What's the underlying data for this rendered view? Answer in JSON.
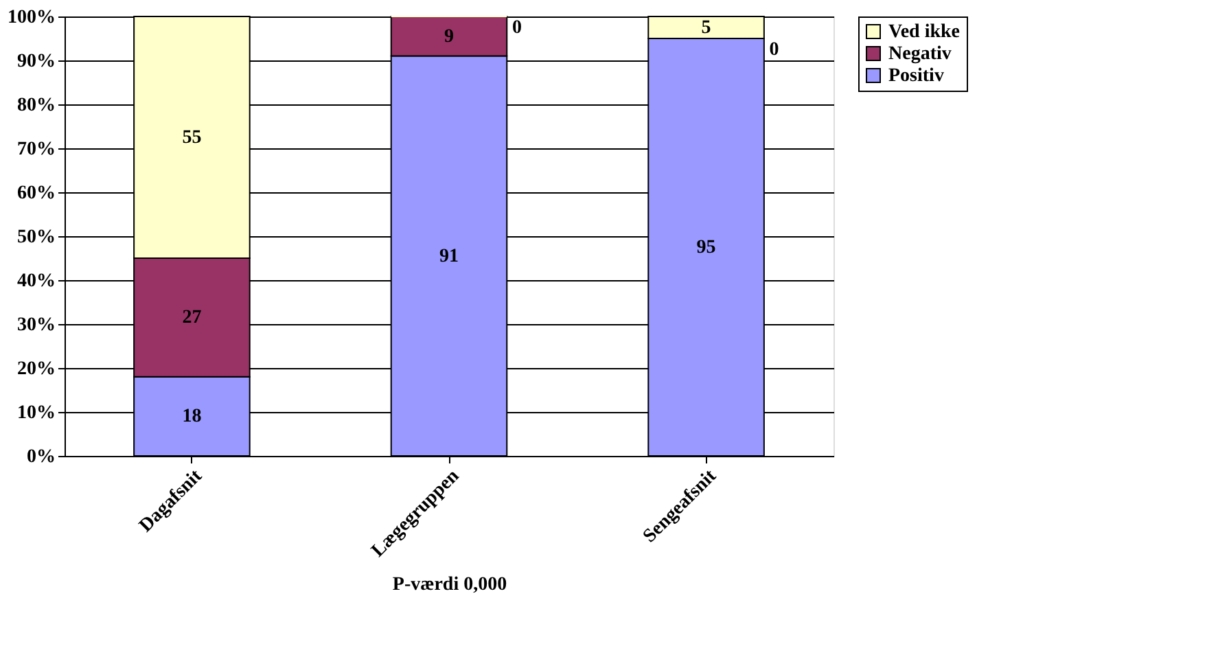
{
  "chart_data": {
    "type": "bar",
    "stacked": true,
    "xlabel": "P-værdi 0,000",
    "categories": [
      "Dagafsnit",
      "Lægegruppen",
      "Sengeafsnit"
    ],
    "series": [
      {
        "name": "Positiv",
        "color": "#9999ff",
        "values": [
          18,
          91,
          95
        ]
      },
      {
        "name": "Negativ",
        "color": "#993366",
        "values": [
          27,
          9,
          0
        ]
      },
      {
        "name": "Ved ikke",
        "color": "#ffffcc",
        "values": [
          55,
          0,
          5
        ]
      }
    ],
    "ylim": [
      0,
      100
    ],
    "yticks": [
      {
        "value": 0,
        "label": "0%"
      },
      {
        "value": 10,
        "label": "10%"
      },
      {
        "value": 20,
        "label": "20%"
      },
      {
        "value": 30,
        "label": "30%"
      },
      {
        "value": 40,
        "label": "40%"
      },
      {
        "value": 50,
        "label": "50%"
      },
      {
        "value": 60,
        "label": "60%"
      },
      {
        "value": 70,
        "label": "70%"
      },
      {
        "value": 80,
        "label": "80%"
      },
      {
        "value": 90,
        "label": "90%"
      },
      {
        "value": 100,
        "label": "100%"
      }
    ],
    "grid": "y",
    "legend": "right",
    "data_labels": true
  }
}
